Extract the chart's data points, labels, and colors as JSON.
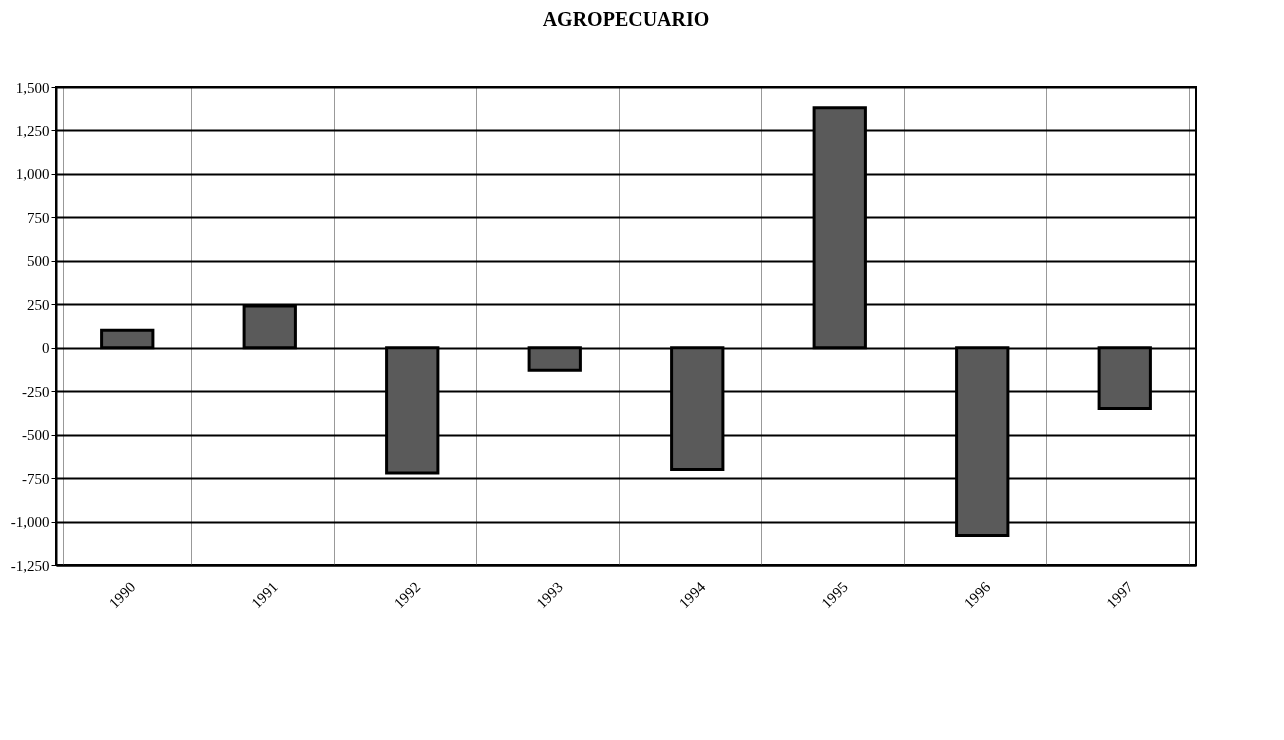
{
  "chart_data": {
    "type": "bar",
    "title": "AGROPECUARIO",
    "categories": [
      "1990",
      "1991",
      "1992",
      "1993",
      "1994",
      "1995",
      "1996",
      "1997"
    ],
    "values": [
      100,
      240,
      -720,
      -130,
      -700,
      1380,
      -1080,
      -350
    ],
    "color": "#5a5a5a",
    "ylim": [
      -1250,
      1500
    ],
    "yticks": [
      {
        "value": -1250,
        "label": "-1,250"
      },
      {
        "value": -1000,
        "label": "-1,000"
      },
      -750,
      -500,
      -250,
      0,
      250,
      500,
      750,
      {
        "value": 1000,
        "label": "1,000"
      },
      {
        "value": 1250,
        "label": "1,250"
      },
      {
        "value": 1500,
        "label": "1,500"
      }
    ],
    "grid": true
  }
}
